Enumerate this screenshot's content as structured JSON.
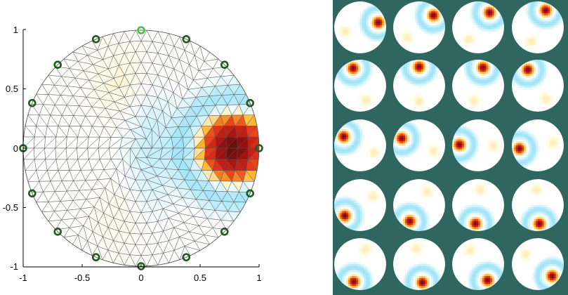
{
  "chart_data": [
    {
      "type": "heatmap",
      "subtype": "triangular-mesh on unit disk with electrode markers",
      "x_range": [
        -1,
        1
      ],
      "y_range": [
        -1,
        1
      ],
      "x_ticks": [
        "-1",
        "-0.5",
        "0",
        "0.5",
        "1"
      ],
      "y_ticks": [
        "1",
        "0.5",
        "0",
        "-0.5",
        "-1"
      ],
      "grid": false,
      "electrodes": {
        "count": 16,
        "angles_deg": [
          90,
          67.5,
          45,
          22.5,
          0,
          -22.5,
          -45,
          -67.5,
          -90,
          -112.5,
          -135,
          -157.5,
          180,
          157.5,
          135,
          112.5
        ],
        "highlighted_index": 0,
        "color": "#1f5a1f",
        "highlight_color": "#3ec43e"
      },
      "blob": {
        "center": [
          0.78,
          0.0
        ],
        "peak": 1.0,
        "width": 0.2
      },
      "colors": {
        "mesh_line": "#555555",
        "positive_strong": "#7a0f0f",
        "positive_weak": "#fff8d8",
        "negative": "#37c6ee"
      }
    },
    {
      "type": "heatmap",
      "subtype": "small multiples of reconstructed disk images",
      "rows": 5,
      "cols": 4,
      "background": "#2f6660",
      "blob_angles_deg": [
        15,
        40,
        52,
        65,
        112,
        90,
        75,
        122,
        152,
        158,
        178,
        190,
        215,
        240,
        262,
        275,
        250,
        280,
        300,
        320
      ]
    }
  ]
}
